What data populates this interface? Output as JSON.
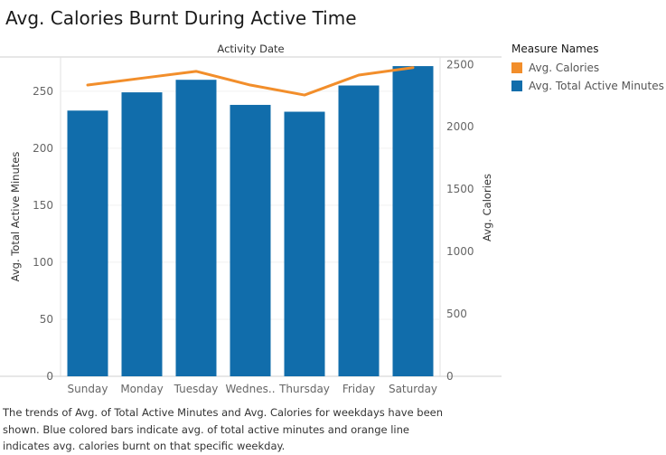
{
  "title": "Avg. Calories Burnt During Active Time",
  "caption": "The trends of Avg. of Total Active Minutes and Avg. Calories for weekdays have been shown.  Blue colored bars indicate avg. of total active minutes and orange line indicates avg. calories burnt on that specific weekday.",
  "legend": {
    "title": "Measure Names",
    "items": [
      {
        "label": "Avg. Calories",
        "color": "#f28e2b"
      },
      {
        "label": "Avg. Total Active Minutes",
        "color": "#116dab"
      }
    ]
  },
  "chart_data": {
    "type": "bar",
    "x_header": "Activity Date",
    "categories": [
      "Sunday",
      "Monday",
      "Tuesday",
      "Wednes..",
      "Thursday",
      "Friday",
      "Saturday"
    ],
    "series": [
      {
        "name": "Avg. Total Active Minutes",
        "type": "bar",
        "axis": "left",
        "color": "#116dab",
        "values": [
          233,
          249,
          260,
          238,
          232,
          255,
          272
        ]
      },
      {
        "name": "Avg. Calories",
        "type": "line",
        "axis": "right",
        "color": "#f28e2b",
        "values": [
          2335,
          2390,
          2445,
          2335,
          2255,
          2415,
          2475
        ]
      }
    ],
    "ylabel_left": "Avg. Total Active Minutes",
    "ylabel_right": "Avg. Calories",
    "ylim_left": [
      0,
      280
    ],
    "ylim_right": [
      0,
      2560
    ],
    "yticks_left": [
      0,
      50,
      100,
      150,
      200,
      250
    ],
    "yticks_right": [
      0,
      500,
      1000,
      1500,
      2000,
      2500
    ],
    "grid": true
  }
}
